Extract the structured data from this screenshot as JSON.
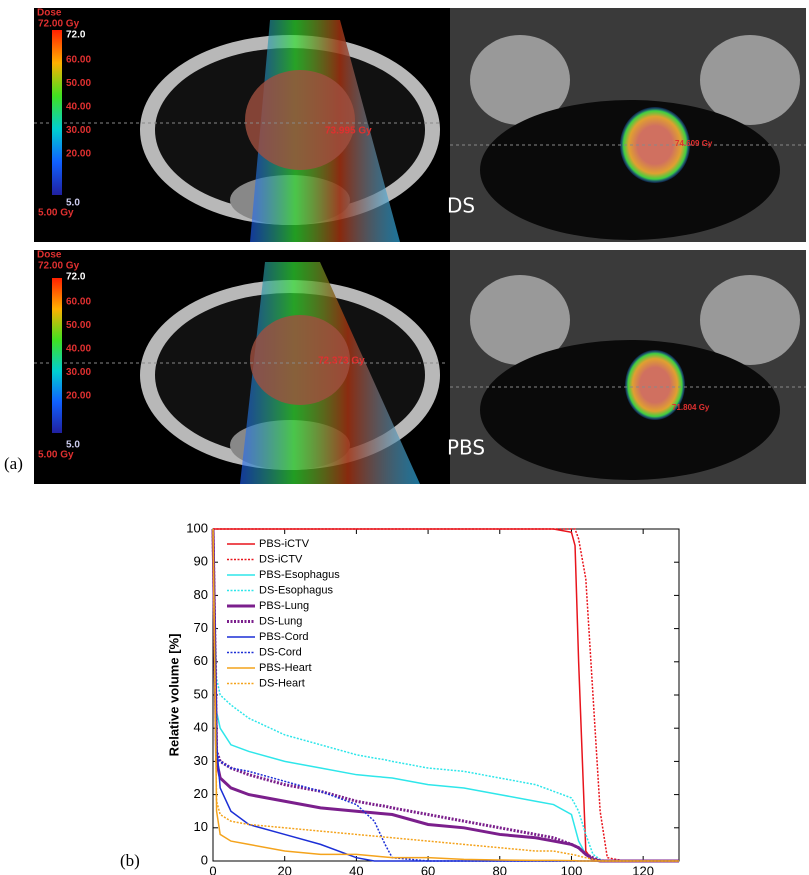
{
  "images": {
    "panel_label": "(a)",
    "ds": {
      "label": "DS",
      "colorbar_title": "Dose",
      "max_dose": "72.00 Gy",
      "max_mark": "72.0",
      "levels": [
        "60.00",
        "50.00",
        "40.00",
        "30.00",
        "20.00"
      ],
      "min_mark": "5.0",
      "min_dose": "5.00 Gy",
      "axial_point": "73.995 Gy",
      "coronal_point": "74.609 Gy"
    },
    "pbs": {
      "label": "PBS",
      "colorbar_title": "Dose",
      "max_dose": "72.00 Gy",
      "max_mark": "72.0",
      "levels": [
        "60.00",
        "50.00",
        "40.00",
        "30.00",
        "20.00"
      ],
      "min_mark": "5.0",
      "min_dose": "5.00 Gy",
      "axial_point": "72.373 Gy",
      "coronal_point": "71.804 Gy"
    }
  },
  "chart_data": {
    "type": "line",
    "panel_label": "(b)",
    "x_label": "Relative dose [%]",
    "y_label": "Relative volume [%]",
    "xlim": [
      0,
      130
    ],
    "ylim": [
      0,
      100
    ],
    "xticks": [
      0,
      20,
      40,
      60,
      80,
      100,
      120
    ],
    "yticks": [
      0,
      10,
      20,
      30,
      40,
      50,
      60,
      70,
      80,
      90,
      100
    ],
    "legend": "top-left",
    "x": [
      0,
      1,
      2,
      5,
      10,
      20,
      30,
      40,
      45,
      48,
      50,
      60,
      70,
      80,
      90,
      95,
      100,
      101,
      102,
      104,
      106,
      108,
      110,
      115,
      130
    ],
    "series": [
      {
        "name": "PBS-iCTV",
        "color": "#e8141c",
        "style": "solid",
        "values": [
          100,
          100,
          100,
          100,
          100,
          100,
          100,
          100,
          100,
          100,
          100,
          100,
          100,
          100,
          100,
          100,
          99,
          95,
          60,
          3,
          0,
          0,
          0,
          0,
          0
        ]
      },
      {
        "name": "DS-iCTV",
        "color": "#e8141c",
        "style": "dotted",
        "values": [
          100,
          100,
          100,
          100,
          100,
          100,
          100,
          100,
          100,
          100,
          100,
          100,
          100,
          100,
          100,
          100,
          100,
          100,
          97,
          85,
          50,
          15,
          1,
          0,
          0
        ]
      },
      {
        "name": "PBS-Esophagus",
        "color": "#2ee6ea",
        "style": "solid",
        "values": [
          100,
          45,
          40,
          35,
          33,
          30,
          28,
          26,
          25.5,
          25.2,
          25,
          23,
          22,
          20,
          18,
          17,
          14,
          10,
          6,
          2,
          0.5,
          0,
          0,
          0,
          0
        ]
      },
      {
        "name": "DS-Esophagus",
        "color": "#2ee6ea",
        "style": "dotted",
        "values": [
          100,
          55,
          50,
          47,
          43,
          38,
          35,
          32,
          31,
          30.5,
          30,
          28,
          27,
          25,
          23,
          21,
          19,
          17,
          15,
          8,
          2,
          0.5,
          0,
          0,
          0
        ]
      },
      {
        "name": "PBS-Lung",
        "color": "#7b1f8c",
        "style": "solid",
        "values": [
          100,
          30,
          25,
          22,
          20,
          18,
          16,
          15,
          14.5,
          14.2,
          14,
          11,
          10,
          8,
          7,
          6,
          5,
          4.5,
          4,
          2,
          0.5,
          0,
          0,
          0,
          0
        ]
      },
      {
        "name": "DS-Lung",
        "color": "#7b1f8c",
        "style": "dotted",
        "values": [
          100,
          33,
          30,
          28,
          26,
          23,
          21,
          18,
          17,
          16.5,
          16,
          14,
          12,
          10,
          8,
          7,
          5,
          4.5,
          4,
          2,
          1,
          0,
          0,
          0,
          0
        ]
      },
      {
        "name": "PBS-Cord",
        "color": "#1c2fd6",
        "style": "solid",
        "values": [
          100,
          35,
          22,
          15,
          11,
          8,
          5,
          1,
          0,
          0,
          0,
          0,
          0,
          0,
          0,
          0,
          0,
          0,
          0,
          0,
          0,
          0,
          0,
          0,
          0
        ]
      },
      {
        "name": "DS-Cord",
        "color": "#1c2fd6",
        "style": "dotted",
        "values": [
          100,
          32,
          30,
          28,
          27,
          24,
          21,
          17,
          12,
          5,
          1,
          0,
          0,
          0,
          0,
          0,
          0,
          0,
          0,
          0,
          0,
          0,
          0,
          0,
          0
        ]
      },
      {
        "name": "PBS-Heart",
        "color": "#f4a31c",
        "style": "solid",
        "values": [
          100,
          15,
          8,
          6,
          5,
          3,
          2,
          2,
          1.5,
          1.2,
          1,
          1,
          0.5,
          0.3,
          0.2,
          0.2,
          0.1,
          0.1,
          0,
          0,
          0,
          0,
          0,
          0,
          0
        ]
      },
      {
        "name": "DS-Heart",
        "color": "#f4a31c",
        "style": "dotted",
        "values": [
          100,
          18,
          14,
          12,
          11,
          10,
          9,
          8,
          7.5,
          7.2,
          7,
          6,
          5,
          4,
          3,
          3,
          2,
          1.8,
          1.5,
          1,
          0.5,
          0,
          0,
          0,
          0
        ]
      }
    ]
  }
}
